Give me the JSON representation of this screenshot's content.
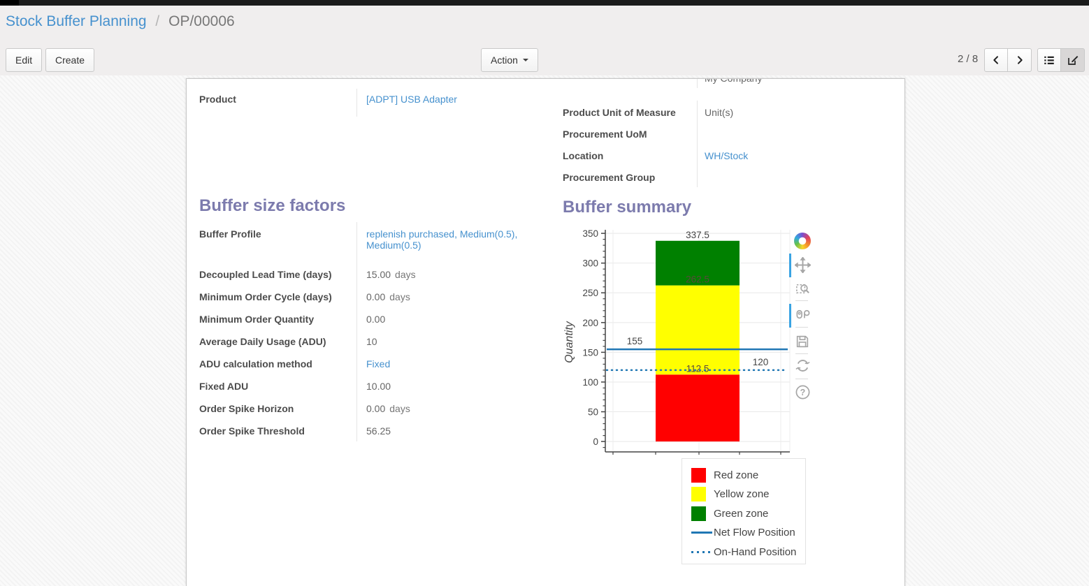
{
  "breadcrumb": {
    "parent": "Stock Buffer Planning",
    "separator": "/",
    "current": "OP/00006"
  },
  "toolbar": {
    "edit_label": "Edit",
    "create_label": "Create",
    "action_label": "Action",
    "pager_text": "2 / 8",
    "view_switcher_icons": [
      "list-view-icon",
      "form-view-icon"
    ]
  },
  "record": {
    "company_partial_value": "My Company",
    "product": {
      "label": "Product",
      "value": "[ADPT] USB Adapter"
    },
    "right_fields": [
      {
        "label": "Product Unit of Measure",
        "value": "Unit(s)"
      },
      {
        "label": "Procurement UoM",
        "value": ""
      },
      {
        "label": "Location",
        "value": "WH/Stock"
      },
      {
        "label": "Procurement Group",
        "value": ""
      }
    ]
  },
  "buffer_factors": {
    "title": "Buffer size factors",
    "rows": [
      {
        "label": "Buffer Profile",
        "value": "replenish purchased, Medium(0.5), Medium(0.5)"
      },
      {
        "label": "Decoupled Lead Time (days)",
        "value": "15.00",
        "unit": "days"
      },
      {
        "label": "Minimum Order Cycle (days)",
        "value": "0.00",
        "unit": "days"
      },
      {
        "label": "Minimum Order Quantity",
        "value": "0.00"
      },
      {
        "label": "Average Daily Usage (ADU)",
        "value": "10"
      },
      {
        "label": "ADU calculation method",
        "value": "Fixed"
      },
      {
        "label": "Fixed ADU",
        "value": "10.00"
      },
      {
        "label": "Order Spike Horizon",
        "value": "0.00",
        "unit": "days"
      },
      {
        "label": "Order Spike Threshold",
        "value": "56.25"
      }
    ]
  },
  "buffer_summary": {
    "title": "Buffer summary"
  },
  "chart_data": {
    "type": "bar",
    "stacked": true,
    "title": "",
    "xlabel": "",
    "ylabel": "Quantity",
    "ylim": [
      0,
      350
    ],
    "ytick_step": 50,
    "ytick_minor_step": 10,
    "grid": true,
    "categories": [
      ""
    ],
    "series": [
      {
        "name": "Red zone",
        "color": "#ff0000",
        "from": 0,
        "to": 112.5,
        "label": "112.5",
        "label_outside": false
      },
      {
        "name": "Yellow zone",
        "color": "#ffff00",
        "from": 112.5,
        "to": 262.5,
        "label": "262.5",
        "label_outside": false
      },
      {
        "name": "Green zone",
        "color": "#008000",
        "from": 262.5,
        "to": 337.5,
        "label": "337.5",
        "label_outside": true
      }
    ],
    "lines": [
      {
        "name": "Net Flow Position",
        "value": 155,
        "style": "solid",
        "color": "#2077b4",
        "label": "155",
        "label_side": "left"
      },
      {
        "name": "On-Hand Position",
        "value": 120,
        "style": "dotted",
        "color": "#2077b4",
        "label": "120",
        "label_side": "right"
      }
    ],
    "legend_position": "below",
    "legend": [
      {
        "label": "Red zone",
        "swatch": "square",
        "color": "#ff0000"
      },
      {
        "label": "Yellow zone",
        "swatch": "square",
        "color": "#ffff00"
      },
      {
        "label": "Green zone",
        "swatch": "square",
        "color": "#008000"
      },
      {
        "label": "Net Flow Position",
        "swatch": "line",
        "color": "#2077b4"
      },
      {
        "label": "On-Hand Position",
        "swatch": "dots",
        "color": "#2077b4"
      }
    ],
    "modebar_icons": [
      "plotly-logo",
      "pan-icon",
      "zoom-icon",
      "compare-hover-icon",
      "save-icon",
      "reset-axes-icon",
      "help-icon"
    ]
  },
  "colors": {
    "link": "#4691ce",
    "heading": "#7c7bad",
    "net_flow_line": "#2077b4",
    "red_zone": "#ff0000",
    "yellow_zone": "#ffff00",
    "green_zone": "#008000"
  }
}
